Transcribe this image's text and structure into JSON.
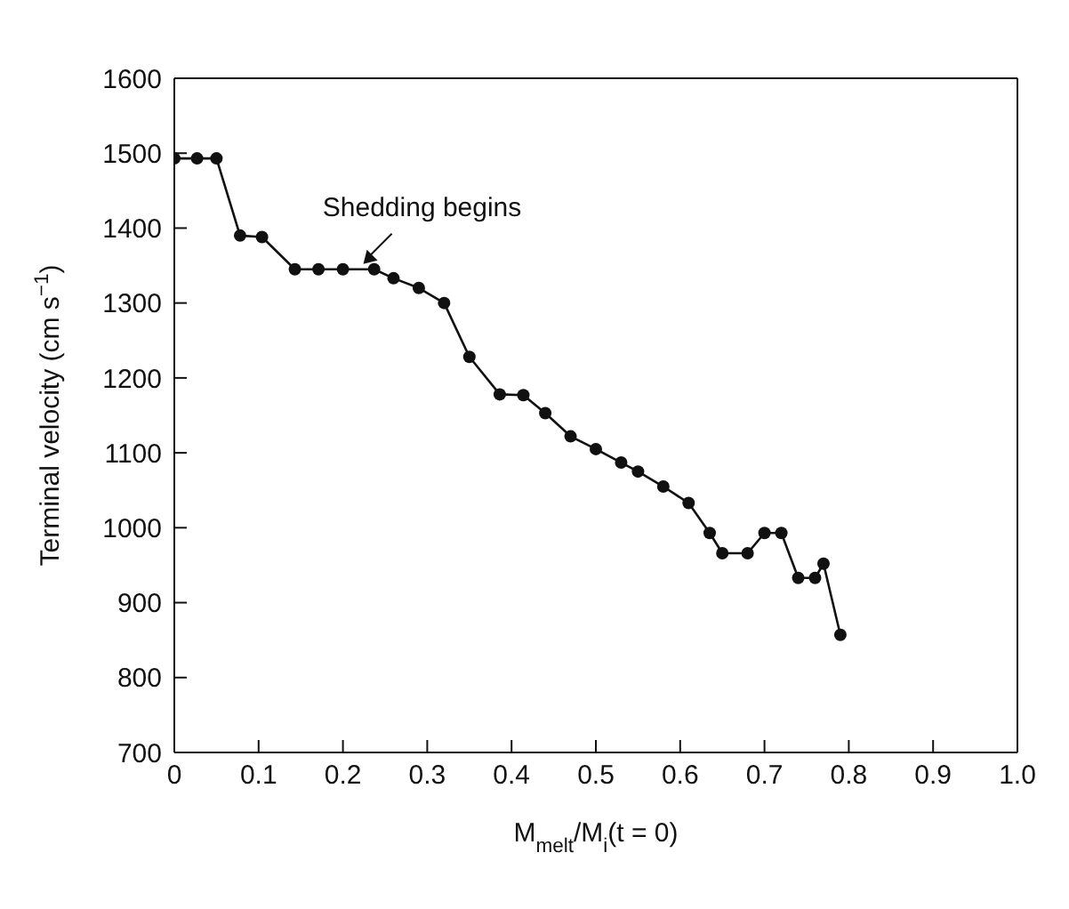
{
  "chart_data": {
    "type": "line",
    "xlabel": "M$_{melt}$/M$_{i}$(t = 0)",
    "ylabel": "Terminal velocity (cm s$^{−1}$)",
    "x": [
      0,
      0.027,
      0.05,
      0.078,
      0.104,
      0.143,
      0.171,
      0.2,
      0.237,
      0.26,
      0.29,
      0.32,
      0.35,
      0.386,
      0.414,
      0.44,
      0.47,
      0.5,
      0.53,
      0.55,
      0.58,
      0.61,
      0.635,
      0.65,
      0.68,
      0.7,
      0.72,
      0.74,
      0.76,
      0.77,
      0.79
    ],
    "series": [
      {
        "color": "#111111",
        "values": [
          1493,
          1493,
          1493,
          1390,
          1388,
          1345,
          1345,
          1345,
          1345,
          1333,
          1320,
          1300,
          1228,
          1178,
          1177,
          1153,
          1122,
          1105,
          1087,
          1075,
          1055,
          1033,
          993,
          966,
          966,
          993,
          993,
          933,
          933,
          952,
          857
        ]
      }
    ],
    "xlim": [
      0,
      1
    ],
    "xticks": [
      0,
      0.1,
      0.2,
      0.3,
      0.4,
      0.5,
      0.6,
      0.7,
      0.8,
      0.9,
      {
        "value": 1,
        "label": "1.0"
      }
    ],
    "ylim": [
      700,
      1600
    ],
    "yticks": [
      700,
      800,
      900,
      1000,
      1100,
      1200,
      1300,
      1400,
      1500,
      1600
    ],
    "marker": "circle",
    "line_style": "solid",
    "annotations": [
      {
        "text": "Shedding begins",
        "x": 0.22,
        "y": 1345
      }
    ]
  }
}
